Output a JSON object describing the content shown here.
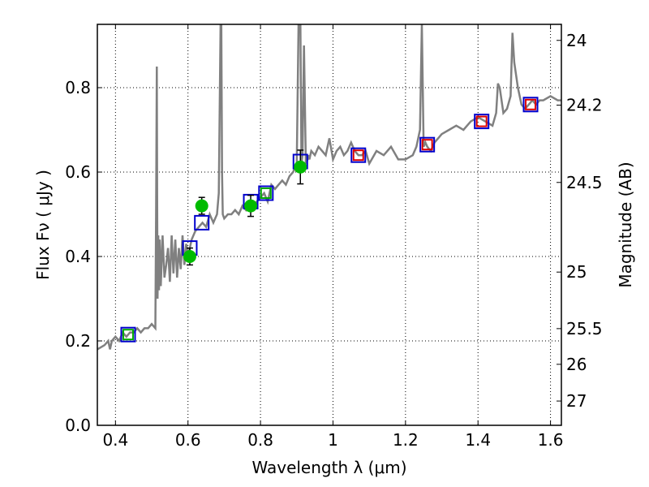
{
  "chart_data": {
    "type": "line",
    "title": "",
    "xlabel": "Wavelength  λ (μm)",
    "ylabel": "Flux  Fν  ( μJy )",
    "ylabel_right": "Magnitude (AB)",
    "xlim": [
      0.35,
      1.63
    ],
    "ylim": [
      0.0,
      0.95
    ],
    "grid": true,
    "x_ticks": [
      0.4,
      0.6,
      0.8,
      1.0,
      1.2,
      1.4,
      1.6
    ],
    "x_tick_labels": [
      "0.4",
      "0.6",
      "0.8",
      "1",
      "1.2",
      "1.4",
      "1.6"
    ],
    "y_ticks": [
      0.0,
      0.2,
      0.4,
      0.6,
      0.8
    ],
    "y_tick_labels": [
      "0.0",
      "0.2",
      "0.4",
      "0.6",
      "0.8"
    ],
    "mag_ticks": [
      24,
      24.2,
      24.5,
      25,
      25.5,
      26,
      27
    ],
    "mag_tick_labels": [
      "24",
      "24.2",
      "24.5",
      "25",
      "25.5",
      "26",
      "27"
    ],
    "series": [
      {
        "kind": "model_spectrum",
        "color": "#808080",
        "x": [
          0.35,
          0.37,
          0.38,
          0.385,
          0.39,
          0.4,
          0.41,
          0.42,
          0.43,
          0.44,
          0.45,
          0.46,
          0.47,
          0.48,
          0.49,
          0.5,
          0.51,
          0.512,
          0.514,
          0.515,
          0.516,
          0.518,
          0.52,
          0.522,
          0.525,
          0.53,
          0.535,
          0.54,
          0.545,
          0.55,
          0.555,
          0.56,
          0.565,
          0.57,
          0.575,
          0.58,
          0.585,
          0.59,
          0.595,
          0.6,
          0.605,
          0.61,
          0.62,
          0.63,
          0.64,
          0.65,
          0.66,
          0.67,
          0.68,
          0.685,
          0.69,
          0.692,
          0.694,
          0.696,
          0.7,
          0.71,
          0.72,
          0.73,
          0.74,
          0.75,
          0.76,
          0.77,
          0.78,
          0.79,
          0.8,
          0.81,
          0.82,
          0.83,
          0.84,
          0.85,
          0.86,
          0.87,
          0.88,
          0.89,
          0.9,
          0.905,
          0.91,
          0.913,
          0.916,
          0.92,
          0.925,
          0.93,
          0.932,
          0.935,
          0.94,
          0.95,
          0.96,
          0.97,
          0.98,
          0.99,
          1.0,
          1.01,
          1.02,
          1.03,
          1.04,
          1.05,
          1.06,
          1.07,
          1.08,
          1.09,
          1.1,
          1.12,
          1.14,
          1.16,
          1.18,
          1.2,
          1.22,
          1.23,
          1.24,
          1.245,
          1.25,
          1.255,
          1.26,
          1.27,
          1.28,
          1.29,
          1.3,
          1.32,
          1.34,
          1.36,
          1.38,
          1.4,
          1.42,
          1.44,
          1.45,
          1.455,
          1.46,
          1.47,
          1.48,
          1.49,
          1.495,
          1.5,
          1.51,
          1.52,
          1.53,
          1.54,
          1.55,
          1.56,
          1.57,
          1.58,
          1.6,
          1.62,
          1.63
        ],
        "y": [
          0.18,
          0.19,
          0.2,
          0.18,
          0.2,
          0.21,
          0.2,
          0.22,
          0.21,
          0.22,
          0.22,
          0.23,
          0.22,
          0.23,
          0.23,
          0.24,
          0.23,
          0.5,
          0.85,
          0.55,
          0.3,
          0.45,
          0.32,
          0.44,
          0.33,
          0.45,
          0.35,
          0.38,
          0.42,
          0.34,
          0.45,
          0.36,
          0.44,
          0.35,
          0.42,
          0.37,
          0.45,
          0.38,
          0.43,
          0.4,
          0.42,
          0.44,
          0.46,
          0.47,
          0.48,
          0.47,
          0.5,
          0.48,
          0.5,
          0.55,
          0.95,
          0.95,
          0.6,
          0.5,
          0.49,
          0.5,
          0.5,
          0.51,
          0.5,
          0.52,
          0.51,
          0.53,
          0.52,
          0.53,
          0.54,
          0.55,
          0.53,
          0.57,
          0.56,
          0.57,
          0.58,
          0.57,
          0.59,
          0.6,
          0.62,
          0.95,
          0.95,
          0.62,
          0.64,
          0.9,
          0.62,
          0.63,
          0.64,
          0.63,
          0.65,
          0.64,
          0.66,
          0.65,
          0.64,
          0.68,
          0.63,
          0.65,
          0.66,
          0.64,
          0.65,
          0.67,
          0.65,
          0.64,
          0.64,
          0.65,
          0.62,
          0.65,
          0.64,
          0.66,
          0.63,
          0.63,
          0.64,
          0.66,
          0.7,
          0.95,
          0.66,
          0.67,
          0.66,
          0.65,
          0.67,
          0.68,
          0.69,
          0.7,
          0.71,
          0.7,
          0.72,
          0.73,
          0.72,
          0.71,
          0.74,
          0.81,
          0.8,
          0.74,
          0.75,
          0.78,
          0.93,
          0.86,
          0.8,
          0.76,
          0.75,
          0.76,
          0.77,
          0.76,
          0.77,
          0.77,
          0.78,
          0.77,
          0.77
        ]
      },
      {
        "kind": "model_photometry",
        "marker": "open-square",
        "color": "#0000cc",
        "x": [
          0.435,
          0.605,
          0.638,
          0.773,
          0.815,
          0.91,
          1.07,
          1.26,
          1.41,
          1.545
        ],
        "y": [
          0.215,
          0.42,
          0.48,
          0.53,
          0.55,
          0.625,
          0.64,
          0.665,
          0.72,
          0.76
        ]
      },
      {
        "kind": "model_photometry",
        "marker": "open-square",
        "color": "#00aa00",
        "x": [
          0.435,
          0.815
        ],
        "y": [
          0.215,
          0.55
        ]
      },
      {
        "kind": "model_photometry",
        "marker": "open-square",
        "color": "#dd0000",
        "x": [
          1.07,
          1.26,
          1.41,
          1.545
        ],
        "y": [
          0.64,
          0.665,
          0.72,
          0.76
        ]
      },
      {
        "kind": "observed_photometry",
        "marker": "filled-circle",
        "color": "#00bb00",
        "x": [
          0.605,
          0.638,
          0.773,
          0.91
        ],
        "y": [
          0.4,
          0.52,
          0.52,
          0.612
        ],
        "err": [
          0.02,
          0.02,
          0.025,
          0.04
        ]
      }
    ]
  }
}
